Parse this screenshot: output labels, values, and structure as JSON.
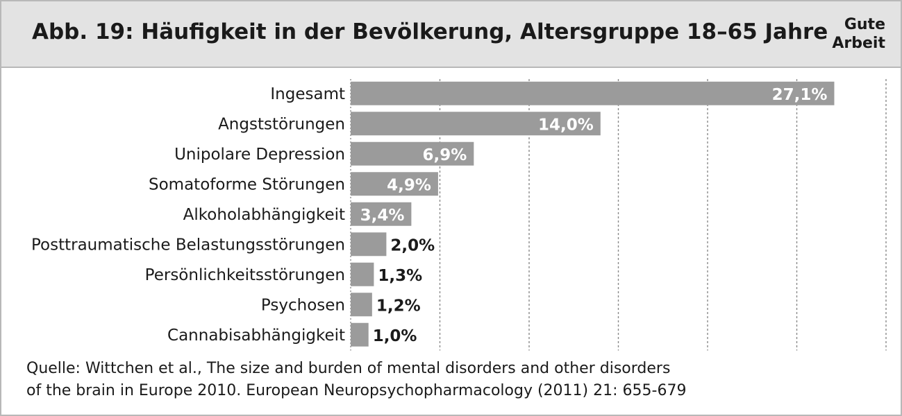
{
  "header": {
    "title": "Abb. 19: Häufigkeit in der Bevölkerung, Altersgruppe 18–65 Jahre",
    "logo_line1": "Gute",
    "logo_line2": "Arbeit"
  },
  "source": {
    "line1": "Quelle: Wittchen et al., The size and burden of mental disorders and other disorders",
    "line2": "of the brain in Europe 2010. European Neuropsychopharmacology (2011) 21: 655-679"
  },
  "chart_data": {
    "type": "bar",
    "orientation": "horizontal",
    "title": "Abb. 19: Häufigkeit in der Bevölkerung, Altersgruppe 18–65 Jahre",
    "xlabel": "",
    "ylabel": "",
    "xlim": [
      0,
      30
    ],
    "grid": true,
    "grid_step": 5,
    "legend": "none",
    "bar_color": "#9b9b9b",
    "categories": [
      "Ingesamt",
      "Angststörungen",
      "Unipolare Depression",
      "Somatoforme Störungen",
      "Alkoholabhängigkeit",
      "Posttraumatische Belastungsstörungen",
      "Persönlichkeitsstörungen",
      "Psychosen",
      "Cannabisabhängigkeit"
    ],
    "values": [
      27.1,
      14.0,
      6.9,
      4.9,
      3.4,
      2.0,
      1.3,
      1.2,
      1.0
    ],
    "value_labels": [
      "27,1%",
      "14,0%",
      "6,9%",
      "4,9%",
      "3,4%",
      "2,0%",
      "1,3%",
      "1,2%",
      "1,0%"
    ]
  }
}
